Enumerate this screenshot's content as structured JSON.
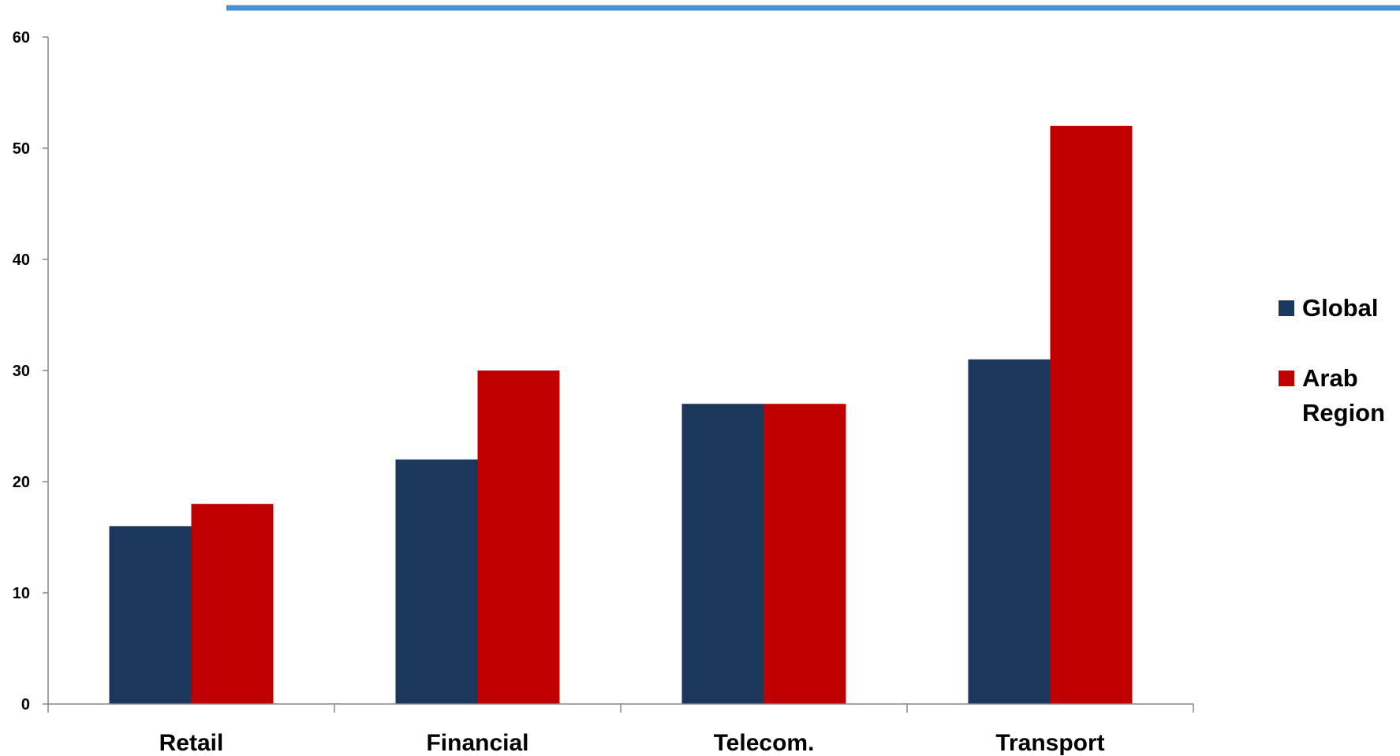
{
  "colors": {
    "accent_line": "#4a90d9",
    "axis": "#868686",
    "global": "#1b375c",
    "arab_region": "#c00000"
  },
  "chart_data": {
    "type": "bar",
    "categories": [
      "Retail",
      "Financial",
      "Telecom.",
      "Transport"
    ],
    "series": [
      {
        "name": "Global",
        "values": [
          16,
          22,
          27,
          31
        ]
      },
      {
        "name": "Arab Region",
        "values": [
          18,
          30,
          27,
          52
        ]
      }
    ],
    "yticks": [
      "0",
      "10",
      "20",
      "30",
      "40",
      "50",
      "60"
    ],
    "ylim": [
      0,
      60
    ],
    "grid": false,
    "legend_position": "right",
    "legend": [
      {
        "lines": [
          "Global"
        ]
      },
      {
        "lines": [
          "Arab",
          "Region"
        ]
      }
    ]
  }
}
